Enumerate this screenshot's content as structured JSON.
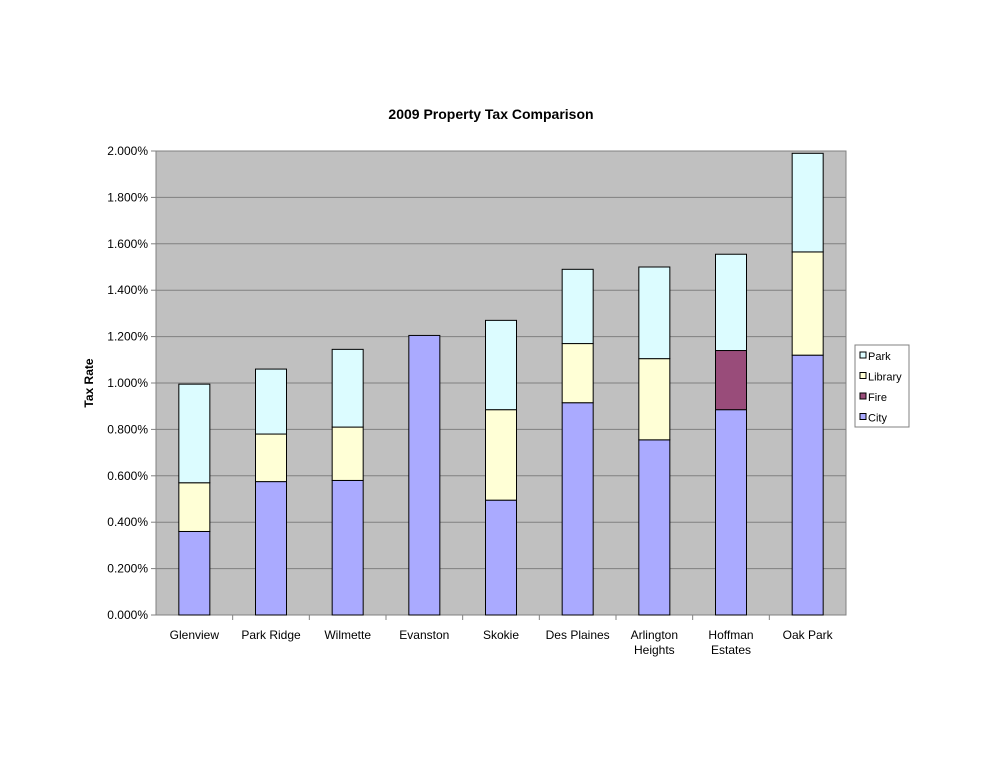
{
  "chart_data": {
    "type": "bar",
    "stacked": true,
    "title": "2009 Property Tax Comparison",
    "xlabel": "",
    "ylabel": "Tax Rate",
    "ylim": [
      0,
      2.0
    ],
    "yticks": [
      "0.000%",
      "0.200%",
      "0.400%",
      "0.600%",
      "0.800%",
      "1.000%",
      "1.200%",
      "1.400%",
      "1.600%",
      "1.800%",
      "2.000%"
    ],
    "grid": true,
    "legend_position": "right",
    "categories": [
      [
        "Glenview"
      ],
      [
        "Park Ridge"
      ],
      [
        "Wilmette"
      ],
      [
        "Evanston"
      ],
      [
        "Skokie"
      ],
      [
        "Des Plaines"
      ],
      [
        "Arlington",
        "Heights"
      ],
      [
        "Hoffman",
        "Estates"
      ],
      [
        "Oak Park"
      ]
    ],
    "series": [
      {
        "name": "City",
        "color": "#aaaaff",
        "values": [
          0.36,
          0.575,
          0.58,
          1.205,
          0.495,
          0.915,
          0.755,
          0.885,
          1.12
        ]
      },
      {
        "name": "Fire",
        "color": "#994c7a",
        "values": [
          0,
          0,
          0,
          0,
          0,
          0,
          0,
          0.255,
          0
        ]
      },
      {
        "name": "Library",
        "color": "#ffffd6",
        "values": [
          0.21,
          0.205,
          0.23,
          0,
          0.39,
          0.255,
          0.35,
          0,
          0.445
        ]
      },
      {
        "name": "Park",
        "color": "#dcfcff",
        "values": [
          0.425,
          0.28,
          0.335,
          0,
          0.385,
          0.32,
          0.395,
          0.415,
          0.425
        ]
      }
    ],
    "legend_order": [
      "Park",
      "Library",
      "Fire",
      "City"
    ],
    "colors": {
      "plot_background": "#c0c0c0",
      "gridline": "#808080",
      "bar_border": "#000000"
    }
  }
}
